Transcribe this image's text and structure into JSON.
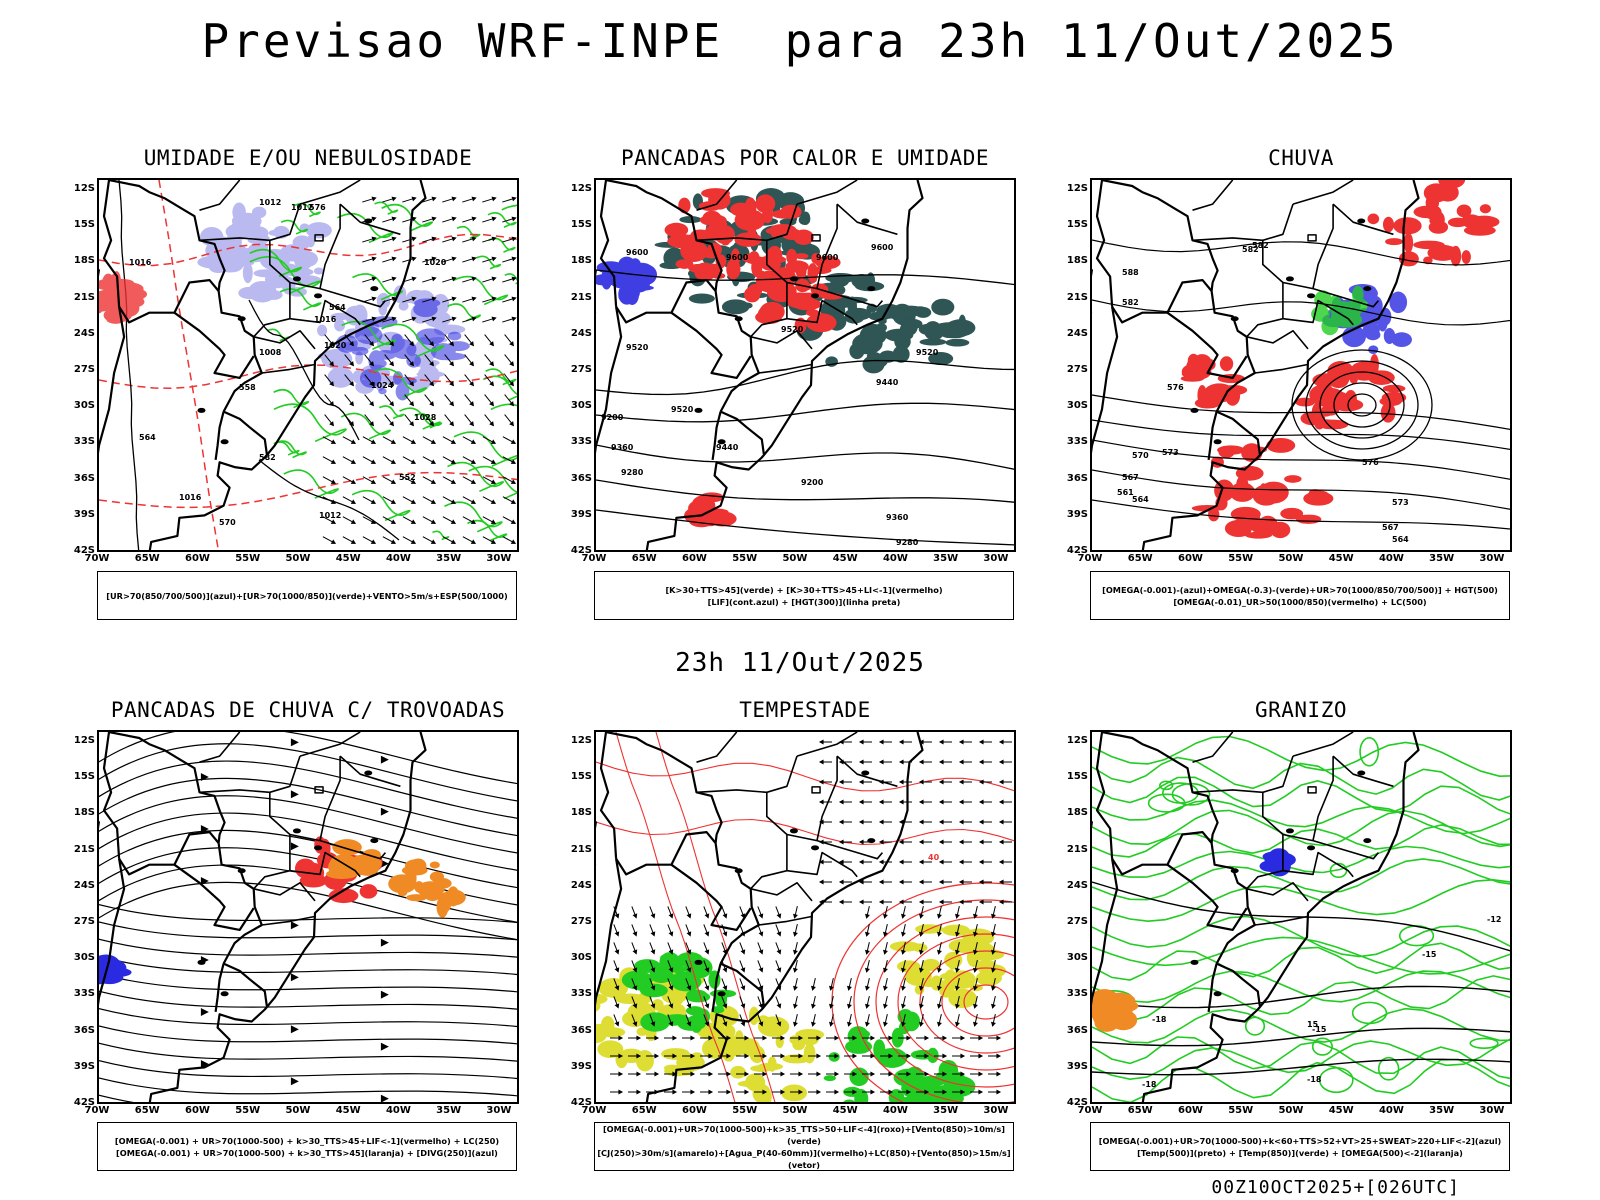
{
  "title": "Previsao WRF-INPE  para 23h 11/Out/2025",
  "subtitle": "23h 11/Out/2025",
  "footer": "00Z10OCT2025+[026UTC]",
  "lat_labels": [
    "12S",
    "15S",
    "18S",
    "21S",
    "24S",
    "27S",
    "30S",
    "33S",
    "36S",
    "39S",
    "42S"
  ],
  "lon_labels": [
    "70W",
    "65W",
    "60W",
    "55W",
    "50W",
    "45W",
    "40W",
    "35W",
    "30W"
  ],
  "colors": {
    "blue": "#2a2ae0",
    "lavender": "#aaaaee",
    "green": "#22cc22",
    "red": "#ee3333",
    "dark_teal": "#2f5555",
    "orange": "#f08a24",
    "yellow": "#dddd33",
    "brown": "#aa6633"
  },
  "panels": [
    {
      "title": "UMIDADE E/OU NEBULOSIDADE",
      "legend": [
        "[UR>70(850/700/500)](azul)+[UR>70(1000/850)](verde)+VENTO>5m/s+ESP(500/1000)"
      ],
      "contour_labels": [
        "1012",
        "1012",
        "1016",
        "1020",
        "1016",
        "1020",
        "1024",
        "1028",
        "1008",
        "1012",
        "1016",
        "570",
        "576",
        "564",
        "558",
        "582",
        "552",
        "564"
      ]
    },
    {
      "title": "PANCADAS POR CALOR E UMIDADE",
      "legend": [
        "[K>30+TTS>45](verde) + [K>30+TTS>45+LI<-1](vermelho)",
        "[LIF](cont.azul) + [HGT(300)](linha preta)"
      ],
      "contour_labels": [
        "9600",
        "9600",
        "9600",
        "9600",
        "9520",
        "9520",
        "9440",
        "9520",
        "9440",
        "9360",
        "9280",
        "9200",
        "9360",
        "9280",
        "9200",
        "9520"
      ]
    },
    {
      "title": "CHUVA",
      "legend": [
        "[OMEGA(-0.001)-(azul)+OMEGA(-0.3)-(verde)+UR>70(1000/850/700/500)] + HGT(500)",
        "[OMEGA(-0.01)_UR>50(1000/850)(vermelho) + LC(500)"
      ],
      "contour_labels": [
        "582",
        "588",
        "582",
        "576",
        "570",
        "573",
        "561",
        "567",
        "564",
        "576",
        "573",
        "567",
        "564",
        "582"
      ]
    },
    {
      "title": "PANCADAS DE CHUVA C/ TROVOADAS",
      "legend": [
        "[OMEGA(-0.001) + UR>70(1000-500) + k>30_TTS>45+LIF<-1](vermelho) + LC(250)",
        "[OMEGA(-0.001) + UR>70(1000-500) + k>30_TTS>45](laranja) + [DIVG(250)](azul)"
      ],
      "contour_labels": []
    },
    {
      "title": "TEMPESTADE",
      "legend": [
        "[OMEGA(-0.001)+UR>70(1000-500)+k>35_TTS>50+LIF<-4](roxo)+[Vento(850)>10m/s](verde)",
        "[CJ(250)>30m/s](amarelo)+[Agua_P(40-60mm)](vermelho)+LC(850)+[Vento(850)>15m/s](vetor)"
      ],
      "contour_labels": [
        "40"
      ]
    },
    {
      "title": "GRANIZO",
      "legend": [
        "[OMEGA(-0.001)+UR>70(1000-500)+k<60+TTS>52+VT>25+SWEAT>220+LIF<-2](azul)",
        "[Temp(500)](preto) + [Temp(850)](verde) + [OMEGA(500)<-2](laranja)"
      ],
      "contour_labels": [
        "-12",
        "-15",
        "-18",
        "-15",
        "-18",
        "-18",
        "15"
      ]
    }
  ]
}
